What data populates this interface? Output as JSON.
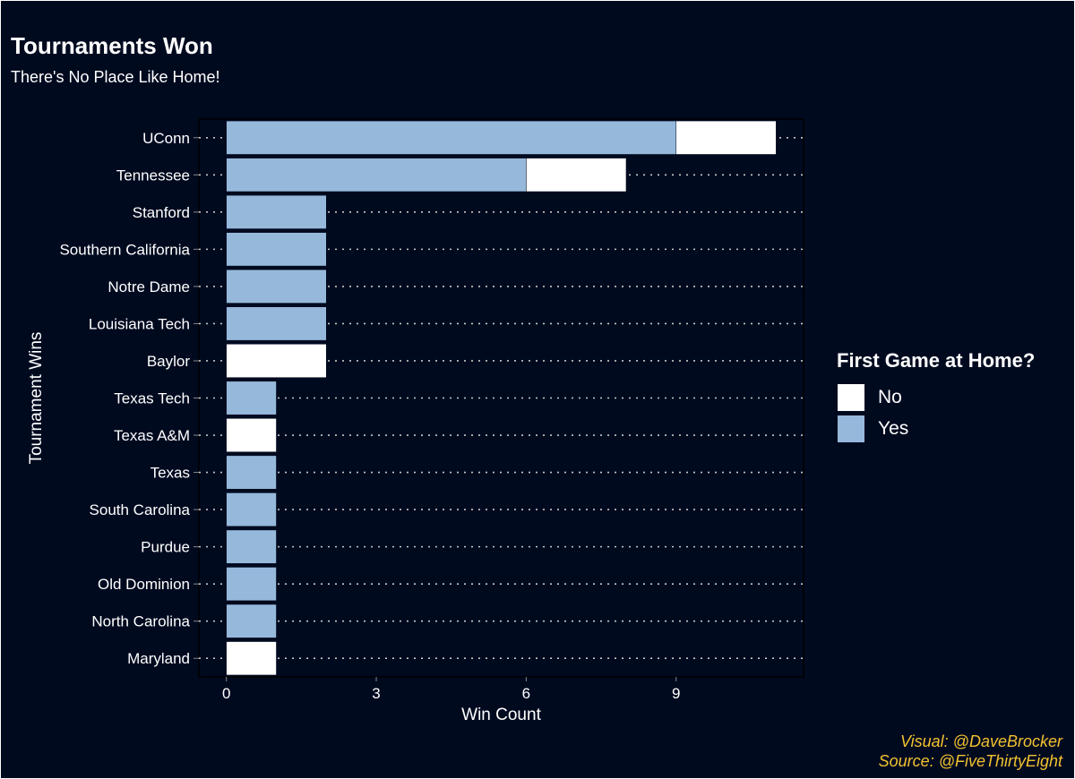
{
  "chart_data": {
    "type": "bar",
    "orientation": "horizontal",
    "stacked": true,
    "title": "Tournaments Won",
    "subtitle": "There's No Place Like Home!",
    "xlabel": "Win Count",
    "ylabel": "Tournament Wins",
    "xlim": [
      -0.55,
      11.55
    ],
    "x_ticks": [
      0,
      3,
      6,
      9
    ],
    "grid": "dotted horizontal lines",
    "categories": [
      "UConn",
      "Tennessee",
      "Stanford",
      "Southern California",
      "Notre Dame",
      "Louisiana Tech",
      "Baylor",
      "Texas Tech",
      "Texas A&M",
      "Texas",
      "South Carolina",
      "Purdue",
      "Old Dominion",
      "North Carolina",
      "Maryland"
    ],
    "series": [
      {
        "name": "Yes",
        "values": [
          9,
          6,
          2,
          2,
          2,
          2,
          0,
          1,
          0,
          1,
          1,
          1,
          1,
          1,
          0
        ]
      },
      {
        "name": "No",
        "values": [
          2,
          2,
          0,
          0,
          0,
          0,
          2,
          0,
          1,
          0,
          0,
          0,
          0,
          0,
          1
        ]
      }
    ],
    "legend": {
      "title": "First Game at Home?",
      "placement": "right",
      "entries": [
        "No",
        "Yes"
      ]
    }
  },
  "colors": {
    "background": "#000a1f",
    "Yes": "#96b9db",
    "No": "#ffffff",
    "credits": "#f2c230",
    "grid": "#c8c8c8"
  },
  "credits": {
    "visual": "Visual: @DaveBrocker",
    "source": "Source: @FiveThirtyEight"
  }
}
